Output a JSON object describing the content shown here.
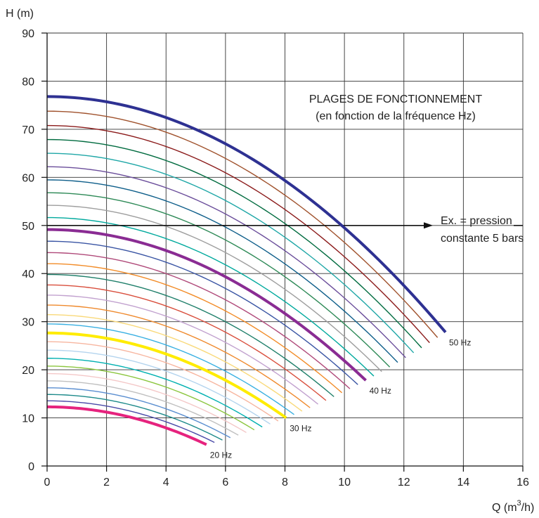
{
  "chart_data": {
    "type": "line",
    "title": "PLAGES DE FONCTIONNEMENT",
    "subtitle": "(en fonction de la fréquence Hz)",
    "ylabel": "H (m)",
    "xlabel_main": "Q (m",
    "xlabel_sup": "3",
    "xlabel_end": "/h)",
    "xlim": [
      0,
      16
    ],
    "ylim": [
      0,
      90
    ],
    "xticks": [
      0,
      2,
      4,
      6,
      8,
      10,
      12,
      14,
      16
    ],
    "yticks": [
      0,
      10,
      20,
      30,
      40,
      50,
      60,
      70,
      80,
      90
    ],
    "grid": true,
    "reference_pressure_m": 50,
    "annotation_lines": [
      "Ex. = pression",
      "constante 5 bars"
    ],
    "pump_curve_model": {
      "shutoff_head_at_50Hz": 76.8,
      "max_flow_at_50Hz": 13.4,
      "head_at_max_flow_50Hz": 27.8,
      "frequency_min": 20,
      "frequency_max": 50,
      "frequency_step": 1
    },
    "highlighted_series": [
      {
        "name": "20 Hz",
        "frequency": 20,
        "color": "#e6237e"
      },
      {
        "name": "30 Hz",
        "frequency": 30,
        "color": "#ffec00"
      },
      {
        "name": "40 Hz",
        "frequency": 40,
        "color": "#8a2c93"
      },
      {
        "name": "50 Hz",
        "frequency": 50,
        "color": "#2e3192"
      }
    ],
    "thin_series_palette": [
      "#4a4aa8",
      "#1d8a8a",
      "#5a8ed0",
      "#c0c0c0",
      "#f4c8c8",
      "#8cc63f",
      "#00b0b0",
      "#b4d4ee",
      "#f7b6a0",
      "#3ab0e2",
      "#f9d97a",
      "#ef8a2e",
      "#c2a2cf",
      "#d94f3d",
      "#1f7f6a",
      "#f28c28",
      "#b04a7a",
      "#3a55a4",
      "#00a99d",
      "#9e9e9e",
      "#2e8a57",
      "#0e5e8a",
      "#6b4e9b",
      "#1fa7a7",
      "#006b3f",
      "#8b1a1a",
      "#a0522d",
      "#9b4f6e",
      "#4b66b0"
    ]
  }
}
